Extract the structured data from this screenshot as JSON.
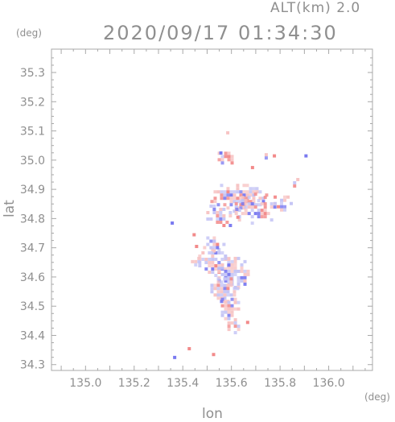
{
  "header": {
    "altitude_label": "ALT(km) 2.0",
    "timestamp": "2020/09/17 01:34:30"
  },
  "axes": {
    "y_unit": "(deg)",
    "x_unit": "(deg)",
    "y_label": "lat",
    "x_label": "lon"
  },
  "chart_data": {
    "type": "heatmap",
    "title": "2020/09/17 01:34:30",
    "subtitle": "ALT(km) 2.0",
    "xlabel": "lon",
    "ylabel": "lat",
    "xlim": [
      134.86,
      136.18
    ],
    "ylim": [
      34.28,
      35.38
    ],
    "x_ticks": [
      "135.0",
      "135.2",
      "135.4",
      "135.6",
      "135.8",
      "136.0"
    ],
    "y_ticks": [
      "34.3",
      "34.4",
      "34.5",
      "34.6",
      "34.7",
      "34.8",
      "34.9",
      "35.0",
      "35.1",
      "35.2",
      "35.3"
    ],
    "grid": false,
    "colors": {
      "positive": "#f28a8a",
      "positive_light": "#f7c4c4",
      "negative": "#7a7af0",
      "negative_light": "#c4c4f5",
      "neutral": "#ffffff",
      "axis": "#a0a0a0"
    }
  }
}
